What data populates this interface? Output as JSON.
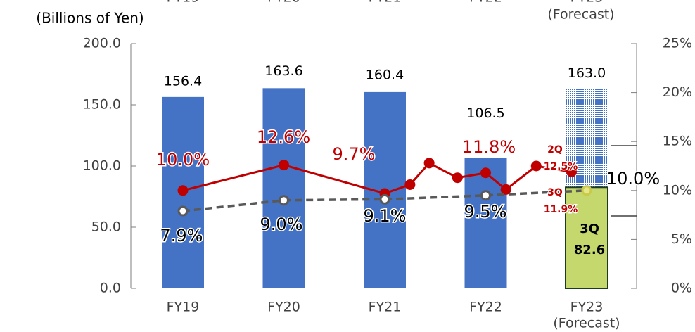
{
  "chart_data": {
    "type": "bar",
    "y_label": "(Billions of Yen)",
    "categories": [
      "FY19",
      "FY20",
      "FY21",
      "FY22",
      "FY23"
    ],
    "category_notes": [
      null,
      null,
      null,
      null,
      "(Forecast)"
    ],
    "ylim": [
      0,
      200
    ],
    "yticks": [
      {
        "value": 0,
        "label": "0.0"
      },
      {
        "value": 50,
        "label": "50.0"
      },
      {
        "value": 100,
        "label": "100.0"
      },
      {
        "value": 150,
        "label": "150.0"
      },
      {
        "value": 200,
        "label": "200.0"
      }
    ],
    "y2lim": [
      0,
      25
    ],
    "y2ticks": [
      {
        "value": 0,
        "label": "0%"
      },
      {
        "value": 5,
        "label": "5%"
      },
      {
        "value": 10,
        "label": "10%"
      },
      {
        "value": 15,
        "label": "15%"
      },
      {
        "value": 20,
        "label": "20%"
      },
      {
        "value": 25,
        "label": "25%"
      }
    ],
    "series": [
      {
        "type": "bar",
        "color": "#4472c4",
        "forecast_pattern": true,
        "values": [
          156.4,
          163.6,
          160.4,
          106.5,
          163.0
        ],
        "value_labels": [
          "156.4",
          "163.6",
          "160.4",
          "106.5",
          "163.0"
        ]
      },
      {
        "type": "bar",
        "name": "3Q",
        "color": "#c5d86d",
        "values": [
          null,
          null,
          null,
          null,
          82.6
        ]
      },
      {
        "type": "line",
        "axis": "y2",
        "color": "#c00000",
        "x": [
          0,
          1,
          2,
          2.25,
          2.44,
          2.72,
          3,
          3.2,
          3.5,
          3.85
        ],
        "values": [
          10.0,
          12.6,
          9.7,
          10.6,
          12.8,
          11.3,
          11.8,
          10.1,
          12.5,
          11.9
        ],
        "value_labels": [
          "10.0%",
          "12.6%",
          "9.7%",
          null,
          null,
          null,
          "11.8%",
          null,
          "12.5%",
          "11.9%"
        ],
        "point_names": [
          null,
          null,
          null,
          null,
          null,
          null,
          null,
          null,
          "2Q",
          "3Q"
        ]
      },
      {
        "type": "line",
        "axis": "y2",
        "color": "#595959",
        "dashed": true,
        "x": [
          0,
          1,
          2,
          3,
          4
        ],
        "values": [
          7.9,
          9.0,
          9.1,
          9.5,
          10.0
        ],
        "value_labels": [
          "7.9%",
          "9.0%",
          "9.1%",
          "9.5%",
          "10.0%"
        ]
      }
    ]
  }
}
